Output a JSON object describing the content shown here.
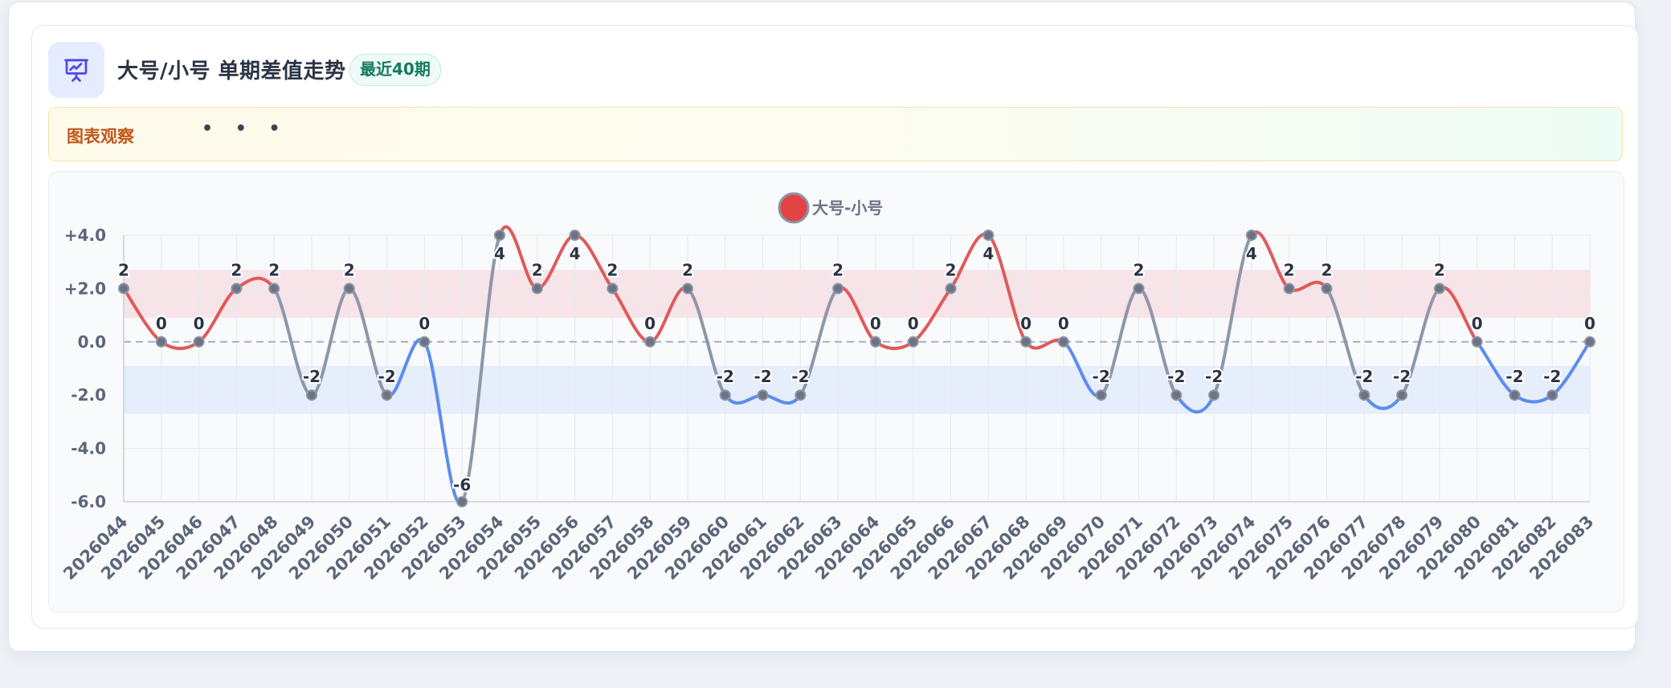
{
  "header": {
    "title": "大号/小号 单期差值走势",
    "badge": "最近40期",
    "icon": "presentation-chart-icon"
  },
  "observation": {
    "label": "图表观察",
    "dots": "• • •"
  },
  "colors": {
    "positive": "#e05a5a",
    "negative": "#5b8def",
    "neutral": "#8e97a8",
    "positive_band": "#f7e4e8",
    "negative_band": "#e6edfb",
    "legend_fill": "#e24444"
  },
  "chart_data": {
    "type": "line",
    "title": "",
    "xlabel": "",
    "ylabel": "",
    "ylim": [
      -6,
      4
    ],
    "yticks": [
      "+4.0",
      "+2.0",
      "0.0",
      "-2.0",
      "-4.0",
      "-6.0"
    ],
    "grid": true,
    "legend": "top-center",
    "categories": [
      "2026044",
      "2026045",
      "2026046",
      "2026047",
      "2026048",
      "2026049",
      "2026050",
      "2026051",
      "2026052",
      "2026053",
      "2026054",
      "2026055",
      "2026056",
      "2026057",
      "2026058",
      "2026059",
      "2026060",
      "2026061",
      "2026062",
      "2026063",
      "2026064",
      "2026065",
      "2026066",
      "2026067",
      "2026068",
      "2026069",
      "2026070",
      "2026071",
      "2026072",
      "2026073",
      "2026074",
      "2026075",
      "2026076",
      "2026077",
      "2026078",
      "2026079",
      "2026080",
      "2026081",
      "2026082",
      "2026083"
    ],
    "series": [
      {
        "name": "大号-小号",
        "values": [
          2,
          0,
          0,
          2,
          2,
          -2,
          2,
          -2,
          0,
          -6,
          4,
          2,
          4,
          2,
          0,
          2,
          -2,
          -2,
          -2,
          2,
          0,
          0,
          2,
          4,
          0,
          0,
          -2,
          2,
          -2,
          -2,
          4,
          2,
          2,
          -2,
          -2,
          2,
          0,
          -2,
          -2,
          0
        ],
        "labels": [
          "2",
          "0",
          "0",
          "2",
          "2",
          "-2",
          "2",
          "-2",
          "0",
          "-6",
          "4",
          "2",
          "4",
          "2",
          "0",
          "2",
          "-2",
          "-2",
          "-2",
          "2",
          "0",
          "0",
          "2",
          "4",
          "0",
          "0",
          "-2",
          "2",
          "-2",
          "-2",
          "4",
          "2",
          "2",
          "-2",
          "-2",
          "2",
          "0",
          "-2",
          "-2",
          "0"
        ]
      }
    ]
  }
}
